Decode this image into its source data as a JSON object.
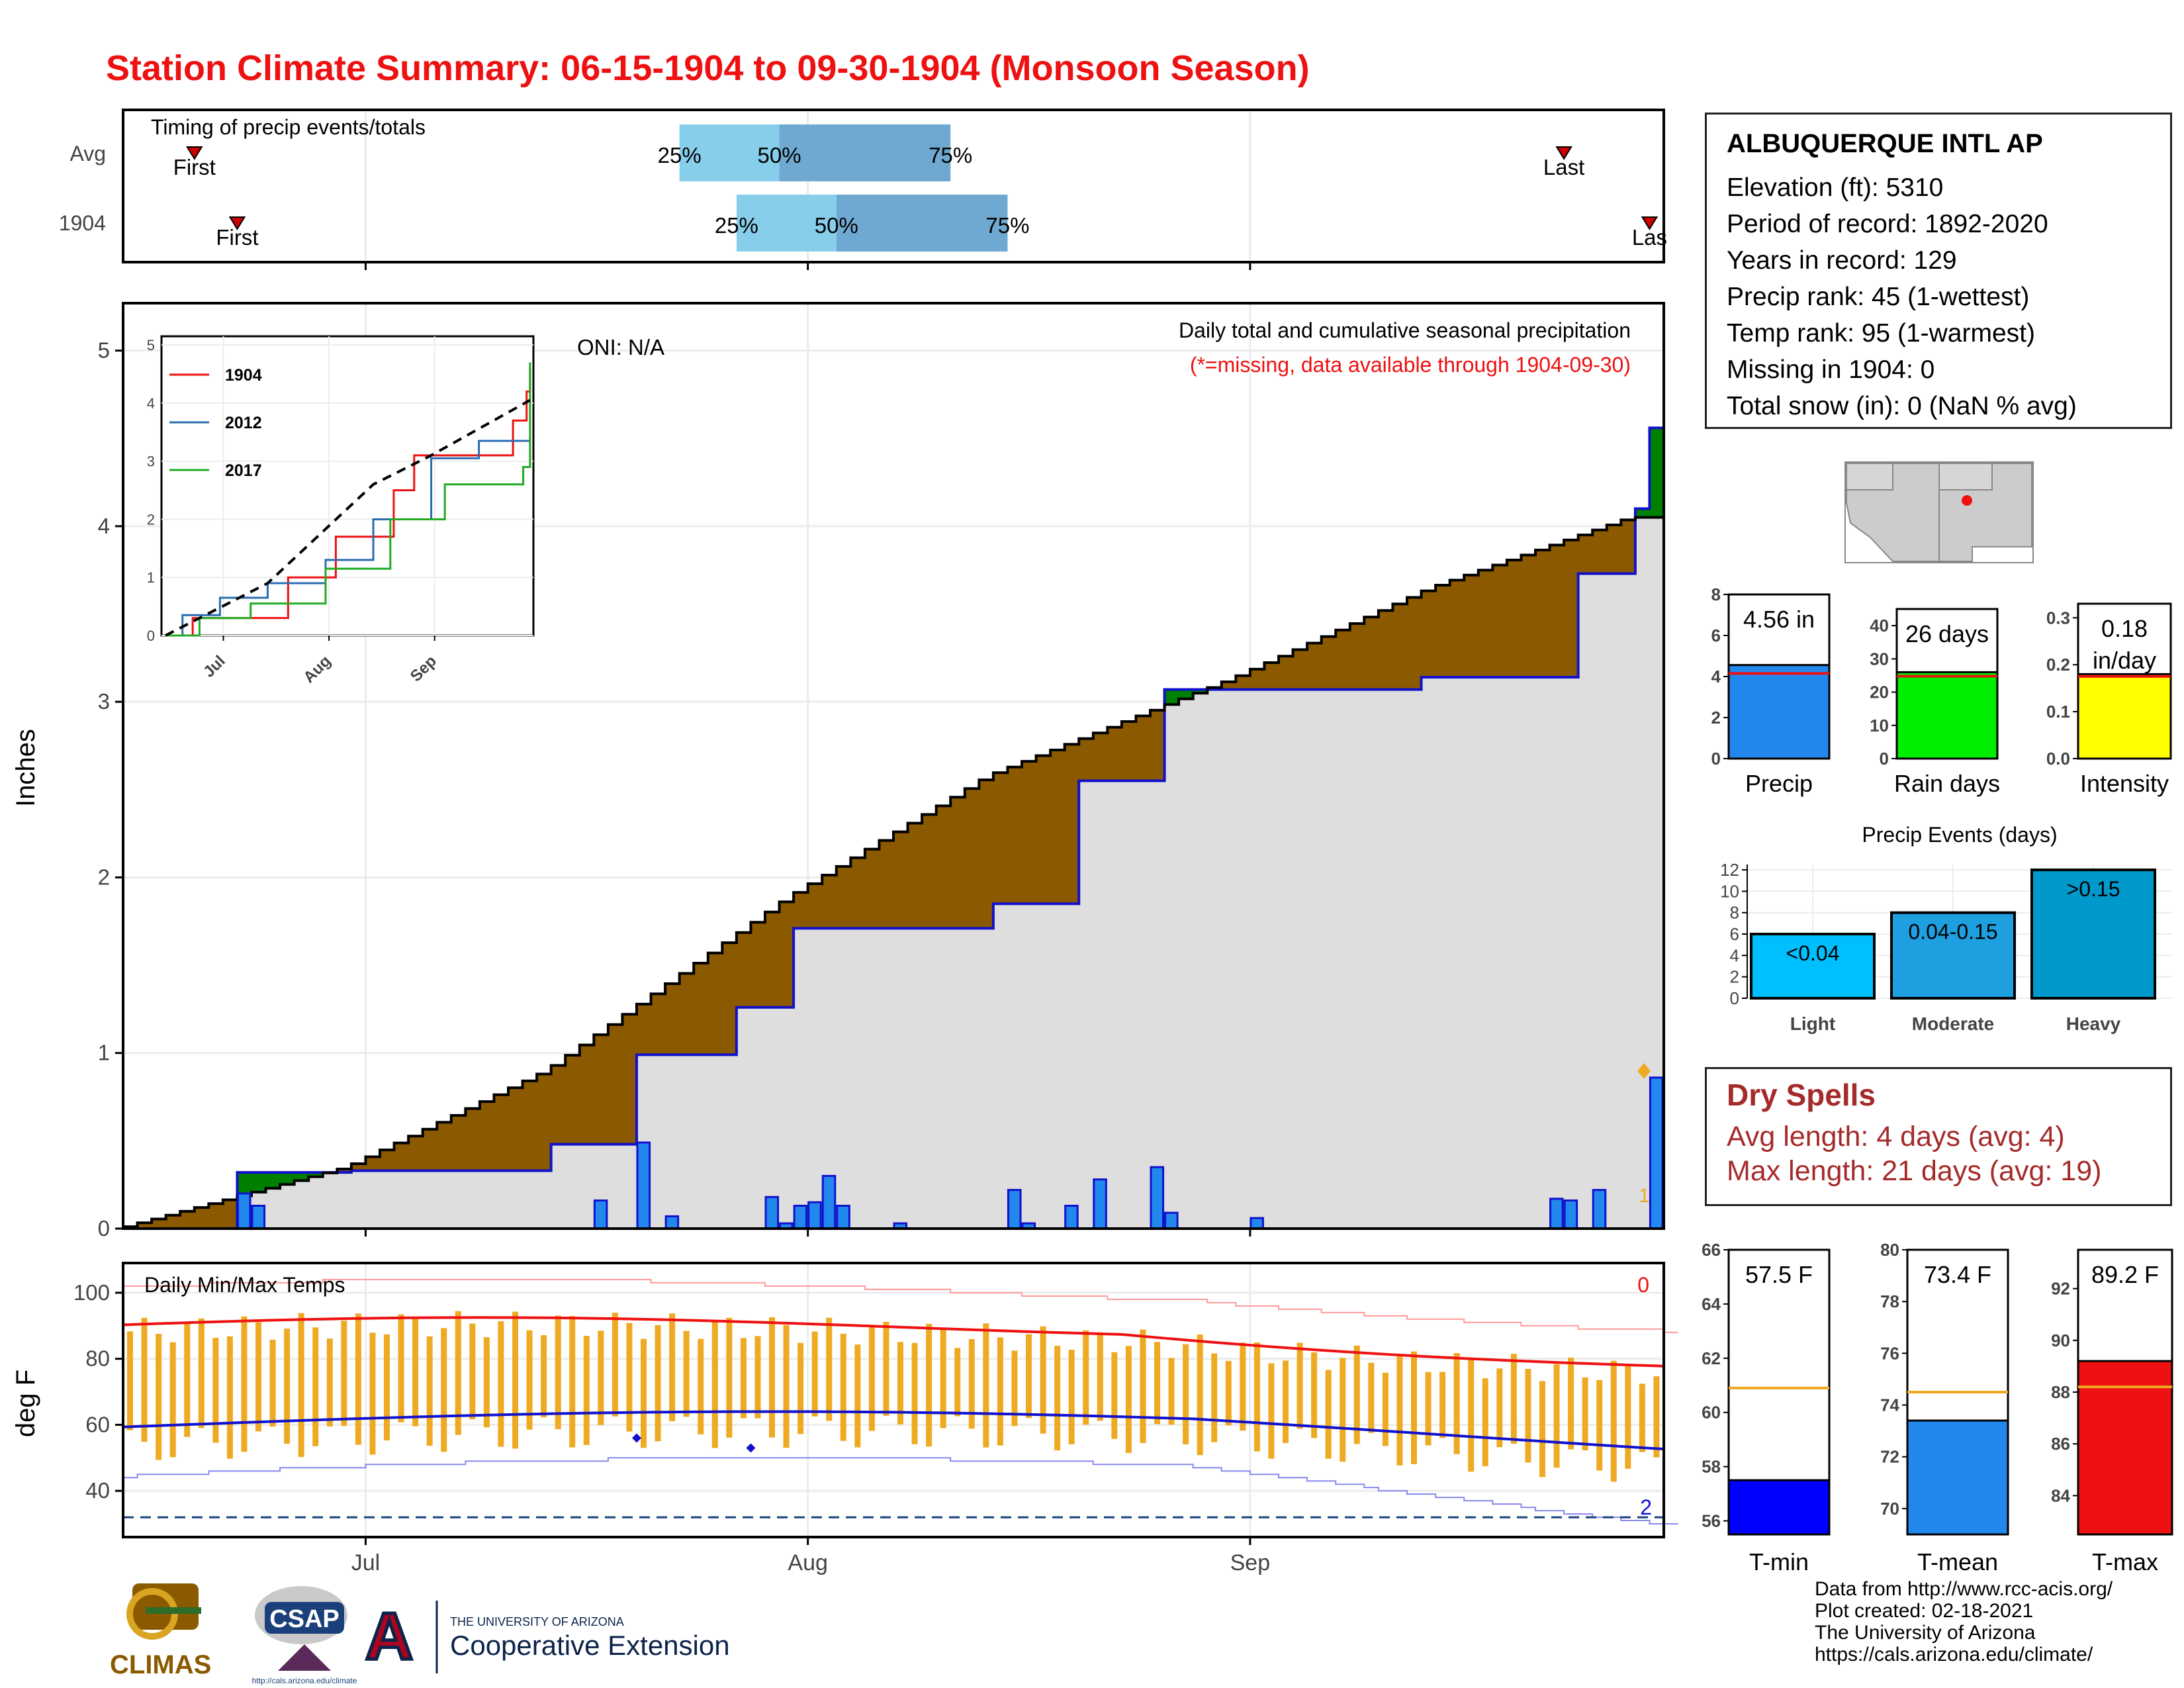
{
  "title": "Station Climate Summary: 06-15-1904 to 09-30-1904 (Monsoon Season)",
  "colors": {
    "title": "#ee1111",
    "precip_fill": "#2288ee",
    "cum_surplus": "#008000",
    "cum_deficit": "#8b5a00",
    "normal_fill": "#dedede",
    "tmax": "#ee1111",
    "tmin": "#1111cc",
    "bars": "#eeaa22",
    "dry": "#a52a2a"
  },
  "timing": {
    "label": "Timing of precip events/totals",
    "rows": [
      "Avg",
      "1904"
    ],
    "first_label": "First",
    "last_label": "Last",
    "last_label_clipped": "Las",
    "avg": {
      "first": "06-20",
      "p25": "07-24",
      "p50": "07-31",
      "p75": "08-12",
      "last": "09-24"
    },
    "y1904": {
      "first": "06-23",
      "p25": "07-28",
      "p50": "08-04",
      "p75": "08-16",
      "last": "09-30"
    },
    "pct_labels": [
      "25%",
      "50%",
      "75%"
    ]
  },
  "main_chart": {
    "ylabel": "Inches",
    "oni": "ONI: N/A",
    "desc1": "Daily total and cumulative seasonal precipitation",
    "desc2": "(*=missing, data available through 1904-09-30)",
    "yticks": [
      "0",
      "1",
      "2",
      "3",
      "4",
      "5"
    ],
    "right_marker": "1"
  },
  "inset": {
    "yticks": [
      "0",
      "1",
      "2",
      "3",
      "4",
      "5"
    ],
    "xticks": [
      "Jul",
      "Aug",
      "Sep"
    ],
    "legend": [
      "1904",
      "2012",
      "2017"
    ]
  },
  "temp_chart": {
    "ylabel": "deg F",
    "label": "Daily Min/Max Temps",
    "yticks": [
      "40",
      "60",
      "80",
      "100"
    ],
    "xticks": [
      "Jul",
      "Aug",
      "Sep"
    ],
    "hot_count": "0",
    "cold_count": "2"
  },
  "chart_data": [
    {
      "type": "line",
      "title": "Daily total and cumulative seasonal precipitation",
      "ylabel": "Inches",
      "ylim": [
        0,
        5
      ],
      "x_range": [
        "06-15",
        "09-30"
      ],
      "series": [
        {
          "name": "1904 cumulative",
          "points": [
            [
              "06-15",
              0
            ],
            [
              "06-23",
              0.32
            ],
            [
              "07-01",
              0.33
            ],
            [
              "07-15",
              0.48
            ],
            [
              "07-21",
              0.99
            ],
            [
              "07-28",
              1.26
            ],
            [
              "08-01",
              1.71
            ],
            [
              "08-15",
              1.85
            ],
            [
              "08-21",
              2.55
            ],
            [
              "08-27",
              3.07
            ],
            [
              "09-14",
              3.14
            ],
            [
              "09-25",
              3.73
            ],
            [
              "09-29",
              4.1
            ],
            [
              "09-30",
              4.56
            ]
          ]
        },
        {
          "name": "normal cumulative",
          "points": [
            [
              "06-15",
              0
            ],
            [
              "07-01",
              0.35
            ],
            [
              "07-15",
              0.9
            ],
            [
              "08-01",
              1.89
            ],
            [
              "08-15",
              2.58
            ],
            [
              "09-01",
              3.13
            ],
            [
              "09-15",
              3.65
            ],
            [
              "09-29",
              4.05
            ]
          ]
        }
      ],
      "daily_precip": [
        [
          "06-23",
          0.2
        ],
        [
          "06-24",
          0.13
        ],
        [
          "07-18",
          0.16
        ],
        [
          "07-21",
          0.49
        ],
        [
          "07-23",
          0.07
        ],
        [
          "07-30",
          0.18
        ],
        [
          "07-31",
          0.03
        ],
        [
          "08-01",
          0.13
        ],
        [
          "08-02",
          0.15
        ],
        [
          "08-03",
          0.3
        ],
        [
          "08-04",
          0.13
        ],
        [
          "08-08",
          0.03
        ],
        [
          "08-16",
          0.22
        ],
        [
          "08-17",
          0.03
        ],
        [
          "08-20",
          0.13
        ],
        [
          "08-22",
          0.28
        ],
        [
          "08-26",
          0.35
        ],
        [
          "08-27",
          0.09
        ],
        [
          "09-02",
          0.06
        ],
        [
          "09-23",
          0.17
        ],
        [
          "09-24",
          0.16
        ],
        [
          "09-26",
          0.22
        ],
        [
          "09-30",
          0.86
        ]
      ]
    },
    {
      "type": "line",
      "title": "inset cumulative",
      "ylim": [
        0,
        5
      ],
      "series": [
        {
          "name": "1904",
          "points": [
            [
              "06-15",
              0
            ],
            [
              "06-23",
              0.3
            ],
            [
              "07-21",
              1.0
            ],
            [
              "08-04",
              1.7
            ],
            [
              "08-21",
              2.5
            ],
            [
              "08-27",
              3.1
            ],
            [
              "09-25",
              3.7
            ],
            [
              "09-29",
              4.2
            ],
            [
              "09-30",
              4.6
            ]
          ]
        },
        {
          "name": "2012",
          "points": [
            [
              "06-15",
              0
            ],
            [
              "06-20",
              0.35
            ],
            [
              "07-01",
              0.65
            ],
            [
              "07-15",
              0.9
            ],
            [
              "08-01",
              1.3
            ],
            [
              "08-15",
              2.0
            ],
            [
              "09-01",
              3.05
            ],
            [
              "09-15",
              3.35
            ],
            [
              "09-30",
              3.35
            ]
          ]
        },
        {
          "name": "2017",
          "points": [
            [
              "06-15",
              0
            ],
            [
              "06-25",
              0.3
            ],
            [
              "07-10",
              0.55
            ],
            [
              "08-01",
              1.15
            ],
            [
              "08-20",
              2.0
            ],
            [
              "09-05",
              2.6
            ],
            [
              "09-28",
              2.9
            ],
            [
              "09-30",
              4.7
            ]
          ]
        },
        {
          "name": "normal",
          "points": [
            [
              "06-15",
              0
            ],
            [
              "07-15",
              0.9
            ],
            [
              "08-15",
              2.6
            ],
            [
              "09-01",
              3.1
            ],
            [
              "09-30",
              4.05
            ]
          ]
        }
      ]
    },
    {
      "type": "bar",
      "title": "Precip",
      "categories": [
        "Precip"
      ],
      "values": [
        4.56
      ],
      "value_label": "4.56 in",
      "avg": 4.15,
      "ylim": [
        0,
        8
      ],
      "yticks": [
        "0",
        "2",
        "4",
        "6",
        "8"
      ],
      "xlabel": "Precip"
    },
    {
      "type": "bar",
      "title": "Rain days",
      "categories": [
        "Rain days"
      ],
      "values": [
        26
      ],
      "value_label": "26 days",
      "avg": 24.8,
      "ylim": [
        0,
        45
      ],
      "yticks": [
        "0",
        "10",
        "20",
        "30",
        "40"
      ],
      "xlabel": "Rain days"
    },
    {
      "type": "bar",
      "title": "Intensity",
      "categories": [
        "Intensity"
      ],
      "values": [
        0.18
      ],
      "value_label_1": "0.18",
      "value_label_2": "in/day",
      "avg": 0.175,
      "ylim": [
        0,
        0.33
      ],
      "yticks": [
        "0.0",
        "0.1",
        "0.2",
        "0.3"
      ],
      "xlabel": "Intensity"
    },
    {
      "type": "bar",
      "title": "Precip Events (days)",
      "categories": [
        "Light",
        "Moderate",
        "Heavy"
      ],
      "values": [
        6,
        8,
        12
      ],
      "bar_labels": [
        "<0.04",
        "0.04-0.15",
        ">0.15"
      ],
      "ylim": [
        0,
        12.5
      ],
      "yticks": [
        "0",
        "2",
        "4",
        "6",
        "8",
        "10",
        "12"
      ]
    },
    {
      "type": "bar",
      "title": "T-min",
      "categories": [
        "T-min"
      ],
      "values": [
        57.5
      ],
      "value_label": "57.5 F",
      "avg": 60.9,
      "ylim": [
        55.5,
        66
      ],
      "yticks": [
        "56",
        "58",
        "60",
        "62",
        "64",
        "66"
      ],
      "xlabel": "T-min"
    },
    {
      "type": "bar",
      "title": "T-mean",
      "categories": [
        "T-mean"
      ],
      "values": [
        73.4
      ],
      "value_label": "73.4 F",
      "avg": 74.5,
      "ylim": [
        69,
        80
      ],
      "yticks": [
        "70",
        "72",
        "74",
        "76",
        "78",
        "80"
      ],
      "xlabel": "T-mean"
    },
    {
      "type": "bar",
      "title": "T-max",
      "categories": [
        "T-max"
      ],
      "values": [
        89.2
      ],
      "value_label": "89.2 F",
      "avg": 88.2,
      "ylim": [
        82.5,
        93.5
      ],
      "yticks": [
        "84",
        "86",
        "88",
        "90",
        "92"
      ],
      "xlabel": "T-max"
    }
  ],
  "station": {
    "name": "ALBUQUERQUE INTL AP",
    "rows": [
      "Elevation (ft): 5310",
      "Period of record: 1892-2020",
      "Years in record: 129",
      "Precip rank: 45 (1-wettest)",
      "Temp rank: 95 (1-warmest)",
      "Missing in 1904: 0",
      "Total snow (in): 0 (NaN % avg)"
    ]
  },
  "dry_spells": {
    "title": "Dry Spells",
    "avg_line": "Avg length: 4 days (avg: 4)",
    "max_line": "Max length: 21 days (avg: 19)"
  },
  "credits": [
    "Data from http://www.rcc-acis.org/",
    "Plot created: 02-18-2021",
    "The University of Arizona",
    "https://cals.arizona.edu/climate/"
  ],
  "logos": {
    "climas": "CLIMAS",
    "csap": "CSAP",
    "csap_url": "http://cals.arizona.edu/climate",
    "ua_top": "THE UNIVERSITY OF ARIZONA",
    "ua_bottom": "Cooperative Extension"
  }
}
